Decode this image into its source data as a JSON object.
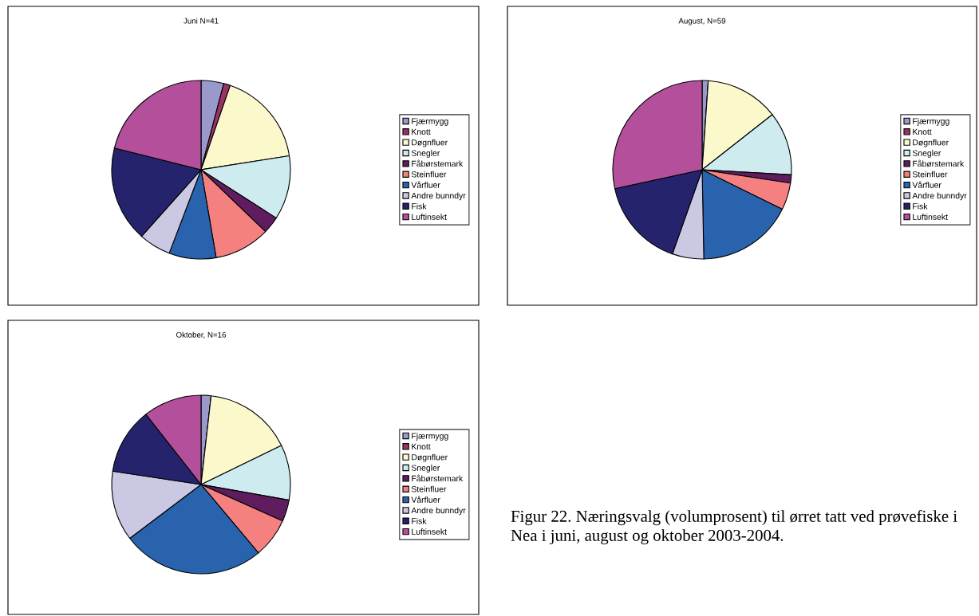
{
  "chart_data": [
    {
      "type": "pie",
      "title": "Juni N=41",
      "legend": "right",
      "categories": [
        "Fjærmygg",
        "Knott",
        "Døgnfluer",
        "Snegler",
        "Fåbørstemark",
        "Steinfluer",
        "Vårfluer",
        "Andre bunndyr",
        "Fisk",
        "Luftinsekt"
      ],
      "values": [
        4.1,
        1.2,
        17.2,
        11.6,
        3.1,
        10.1,
        8.5,
        5.8,
        17.3,
        21.1
      ],
      "colors": [
        "#9999cc",
        "#993366",
        "#fbf8cc",
        "#ceecef",
        "#5f1d5f",
        "#f48080",
        "#2a63ad",
        "#cbc8e4",
        "#25236b",
        "#b44f9c"
      ]
    },
    {
      "type": "pie",
      "title": "August, N=59",
      "legend": "right",
      "categories": [
        "Fjærmygg",
        "Knott",
        "Døgnfluer",
        "Snegler",
        "Fåbørstemark",
        "Steinfluer",
        "Vårfluer",
        "Andre bunndyr",
        "Fisk",
        "Luftinsekt"
      ],
      "values": [
        1.1,
        0,
        13.3,
        11.5,
        1.5,
        4.9,
        17.4,
        5.7,
        16.2,
        28.4
      ],
      "colors": [
        "#9999cc",
        "#993366",
        "#fbf8cc",
        "#ceecef",
        "#5f1d5f",
        "#f48080",
        "#2a63ad",
        "#cbc8e4",
        "#25236b",
        "#b44f9c"
      ]
    },
    {
      "type": "pie",
      "title": "Oktober, N=16",
      "legend": "right",
      "categories": [
        "Fjærmygg",
        "Knott",
        "Døgnfluer",
        "Snegler",
        "Fåbørstemark",
        "Steinfluer",
        "Vårfluer",
        "Andre bunndyr",
        "Fisk",
        "Luftinsekt"
      ],
      "values": [
        1.8,
        0,
        16.0,
        10.0,
        3.9,
        7.2,
        25.8,
        12.7,
        12.0,
        10.6
      ],
      "colors": [
        "#9999cc",
        "#993366",
        "#fbf8cc",
        "#ceecef",
        "#5f1d5f",
        "#f48080",
        "#2a63ad",
        "#cbc8e4",
        "#25236b",
        "#b44f9c"
      ],
      "annotations": [
        "Figur 22. Næringsvalg (volumprosent) til ørret tatt ved prøvefiske i Nea i juni, august og oktober 2003-2004."
      ]
    }
  ]
}
